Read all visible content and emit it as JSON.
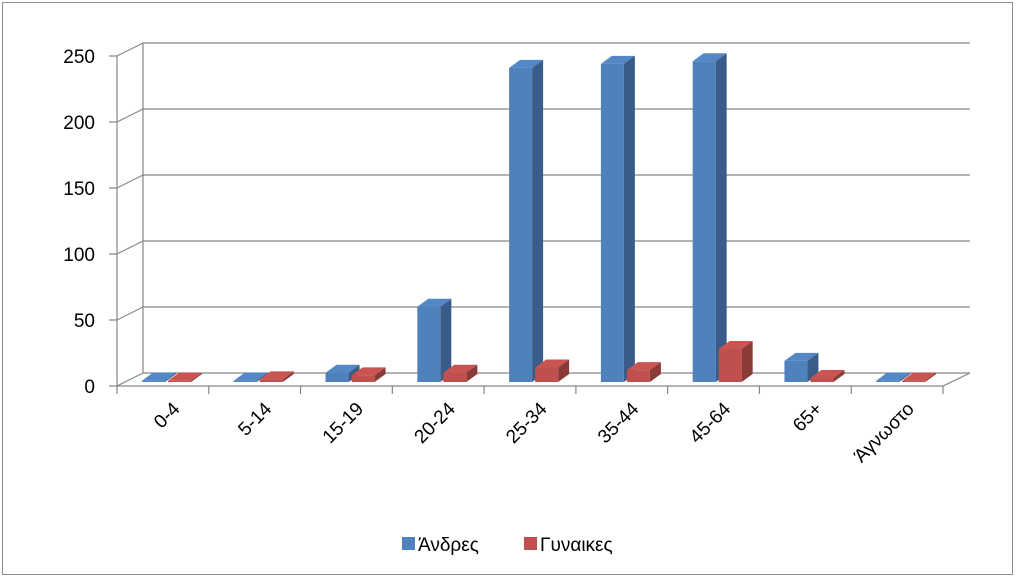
{
  "chart_data": {
    "type": "bar",
    "title": "",
    "xlabel": "",
    "ylabel": "",
    "ylim": [
      0,
      250
    ],
    "yticks": [
      0,
      50,
      100,
      150,
      200,
      250
    ],
    "grid": true,
    "legend_position": "bottom",
    "categories": [
      "0-4",
      "5-14",
      "15-19",
      "20-24",
      "25-34",
      "35-44",
      "45-64",
      "65+",
      "Άγνωστο"
    ],
    "series": [
      {
        "name": "Άνδρες",
        "color": "#4F81BD",
        "values": [
          1,
          1,
          7,
          57,
          238,
          241,
          243,
          16,
          1
        ]
      },
      {
        "name": "Γυναικες",
        "color": "#C0504D",
        "values": [
          1,
          2,
          5,
          7,
          11,
          9,
          25,
          3,
          1
        ]
      }
    ]
  }
}
